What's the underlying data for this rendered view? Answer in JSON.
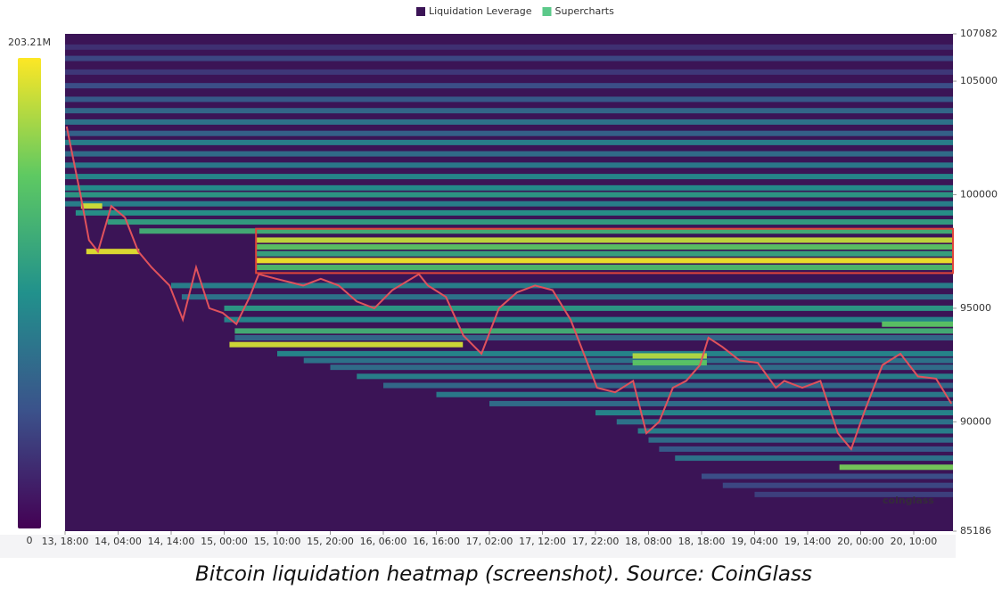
{
  "chart_data": {
    "type": "heatmap",
    "legend": [
      {
        "name": "Liquidation Leverage",
        "color": "#3b1456"
      },
      {
        "name": "Supercharts",
        "color": "#5cc98a"
      }
    ],
    "xlim": [
      0,
      167.4
    ],
    "xticks": [
      {
        "value": 0,
        "label": "13, 18:00"
      },
      {
        "value": 10,
        "label": "14, 04:00"
      },
      {
        "value": 20,
        "label": "14, 14:00"
      },
      {
        "value": 30,
        "label": "15, 00:00"
      },
      {
        "value": 40,
        "label": "15, 10:00"
      },
      {
        "value": 50,
        "label": "15, 20:00"
      },
      {
        "value": 60,
        "label": "16, 06:00"
      },
      {
        "value": 70,
        "label": "16, 16:00"
      },
      {
        "value": 80,
        "label": "17, 02:00"
      },
      {
        "value": 90,
        "label": "17, 12:00"
      },
      {
        "value": 100,
        "label": "17, 22:00"
      },
      {
        "value": 110,
        "label": "18, 08:00"
      },
      {
        "value": 120,
        "label": "18, 18:00"
      },
      {
        "value": 130,
        "label": "19, 04:00"
      },
      {
        "value": 140,
        "label": "19, 14:00"
      },
      {
        "value": 150,
        "label": "20, 00:00"
      },
      {
        "value": 160,
        "label": "20, 10:00"
      }
    ],
    "ylim": [
      85186,
      107082
    ],
    "yticks": [
      85186,
      90000,
      95000,
      100000,
      105000,
      107082
    ],
    "clim": [
      0,
      203.21
    ],
    "cticks": [
      0,
      {
        "value": 203.21,
        "label": "203.21M"
      }
    ],
    "bands": [
      {
        "price": 106500,
        "start": 0,
        "end": 167.4,
        "value": 30
      },
      {
        "price": 106000,
        "start": 0,
        "end": 167.4,
        "value": 45
      },
      {
        "price": 105400,
        "start": 0,
        "end": 167.4,
        "value": 35
      },
      {
        "price": 104800,
        "start": 0,
        "end": 167.4,
        "value": 50
      },
      {
        "price": 104200,
        "start": 0,
        "end": 167.4,
        "value": 60
      },
      {
        "price": 103700,
        "start": 0,
        "end": 167.4,
        "value": 70
      },
      {
        "price": 103200,
        "start": 0,
        "end": 167.4,
        "value": 80
      },
      {
        "price": 102700,
        "start": 0,
        "end": 167.4,
        "value": 65
      },
      {
        "price": 102300,
        "start": 0,
        "end": 167.4,
        "value": 90
      },
      {
        "price": 101800,
        "start": 0,
        "end": 167.4,
        "value": 75
      },
      {
        "price": 101300,
        "start": 0,
        "end": 167.4,
        "value": 85
      },
      {
        "price": 100800,
        "start": 0,
        "end": 167.4,
        "value": 95
      },
      {
        "price": 100300,
        "start": 0,
        "end": 167.4,
        "value": 100
      },
      {
        "price": 100000,
        "start": 0,
        "end": 167.4,
        "value": 110
      },
      {
        "price": 99600,
        "start": 0,
        "end": 167.4,
        "value": 90
      },
      {
        "price": 99200,
        "start": 2,
        "end": 167.4,
        "value": 105
      },
      {
        "price": 98800,
        "start": 8,
        "end": 167.4,
        "value": 115
      },
      {
        "price": 98400,
        "start": 14,
        "end": 167.4,
        "value": 130
      },
      {
        "price": 98000,
        "start": 36,
        "end": 167.4,
        "value": 185
      },
      {
        "price": 97700,
        "start": 36,
        "end": 167.4,
        "value": 150
      },
      {
        "price": 97400,
        "start": 36,
        "end": 167.4,
        "value": 120
      },
      {
        "price": 97100,
        "start": 36,
        "end": 167.4,
        "value": 200
      },
      {
        "price": 96800,
        "start": 36,
        "end": 167.4,
        "value": 140
      },
      {
        "price": 99500,
        "start": 3,
        "end": 7,
        "value": 190
      },
      {
        "price": 97500,
        "start": 4,
        "end": 14,
        "value": 195
      },
      {
        "price": 96000,
        "start": 20,
        "end": 167.4,
        "value": 90
      },
      {
        "price": 95500,
        "start": 22,
        "end": 167.4,
        "value": 80
      },
      {
        "price": 95000,
        "start": 30,
        "end": 167.4,
        "value": 110
      },
      {
        "price": 94500,
        "start": 30,
        "end": 167.4,
        "value": 95
      },
      {
        "price": 94000,
        "start": 32,
        "end": 167.4,
        "value": 130
      },
      {
        "price": 93700,
        "start": 32,
        "end": 167.4,
        "value": 70
      },
      {
        "price": 93400,
        "start": 31,
        "end": 75,
        "value": 190
      },
      {
        "price": 93000,
        "start": 40,
        "end": 167.4,
        "value": 95
      },
      {
        "price": 92700,
        "start": 45,
        "end": 167.4,
        "value": 80
      },
      {
        "price": 92400,
        "start": 50,
        "end": 167.4,
        "value": 75
      },
      {
        "price": 92000,
        "start": 55,
        "end": 167.4,
        "value": 90
      },
      {
        "price": 91600,
        "start": 60,
        "end": 167.4,
        "value": 70
      },
      {
        "price": 91200,
        "start": 70,
        "end": 167.4,
        "value": 85
      },
      {
        "price": 90800,
        "start": 80,
        "end": 167.4,
        "value": 75
      },
      {
        "price": 90400,
        "start": 100,
        "end": 167.4,
        "value": 95
      },
      {
        "price": 90000,
        "start": 104,
        "end": 167.4,
        "value": 80
      },
      {
        "price": 89600,
        "start": 108,
        "end": 167.4,
        "value": 90
      },
      {
        "price": 89200,
        "start": 110,
        "end": 167.4,
        "value": 75
      },
      {
        "price": 88800,
        "start": 112,
        "end": 167.4,
        "value": 60
      },
      {
        "price": 88400,
        "start": 115,
        "end": 167.4,
        "value": 80
      },
      {
        "price": 88000,
        "start": 146,
        "end": 167.4,
        "value": 160
      },
      {
        "price": 87600,
        "start": 120,
        "end": 167.4,
        "value": 50
      },
      {
        "price": 87200,
        "start": 124,
        "end": 167.4,
        "value": 45
      },
      {
        "price": 86800,
        "start": 130,
        "end": 167.4,
        "value": 40
      },
      {
        "price": 92900,
        "start": 107,
        "end": 121,
        "value": 180
      },
      {
        "price": 92600,
        "start": 107,
        "end": 121,
        "value": 150
      },
      {
        "price": 94300,
        "start": 154,
        "end": 167.4,
        "value": 150
      }
    ],
    "price": {
      "color": "#e0525c",
      "x": [
        0.3,
        2.9,
        4.5,
        6.2,
        8.7,
        11.3,
        13.8,
        16.3,
        19.7,
        22.2,
        24.7,
        27.2,
        29.7,
        32.3,
        34.8,
        36.5,
        39.8,
        44.9,
        48.2,
        51.6,
        55.0,
        58.3,
        61.7,
        66.7,
        68.4,
        71.8,
        75.1,
        78.5,
        81.8,
        85.2,
        88.6,
        91.9,
        95.3,
        97.8,
        100.3,
        103.7,
        107.1,
        109.6,
        112.0,
        114.6,
        117.1,
        119.7,
        121.3,
        123.9,
        127.2,
        130.6,
        134.0,
        135.6,
        139.0,
        142.4,
        145.7,
        148.2,
        150.8,
        154.1,
        157.5,
        160.8,
        164.2,
        167.1
      ],
      "values": [
        103000,
        100000,
        98000,
        97500,
        99500,
        99000,
        97500,
        96800,
        96000,
        94500,
        96800,
        95000,
        94800,
        94300,
        95500,
        96500,
        96300,
        96000,
        96300,
        96000,
        95300,
        95000,
        95800,
        96500,
        96000,
        95500,
        93800,
        93000,
        95000,
        95700,
        96000,
        95800,
        94500,
        93000,
        91500,
        91300,
        91800,
        89500,
        90000,
        91500,
        91800,
        92500,
        93700,
        93300,
        92700,
        92600,
        91500,
        91800,
        91500,
        91800,
        89500,
        88800,
        90500,
        92500,
        93000,
        92000,
        91900,
        90800
      ]
    },
    "highlight_box": {
      "xlim": [
        36,
        167.4
      ],
      "ylim": [
        96550,
        98500
      ]
    },
    "watermark": "coinglass",
    "caption": "Bitcoin liquidation heatmap (screenshot). Source: CoinGlass"
  }
}
